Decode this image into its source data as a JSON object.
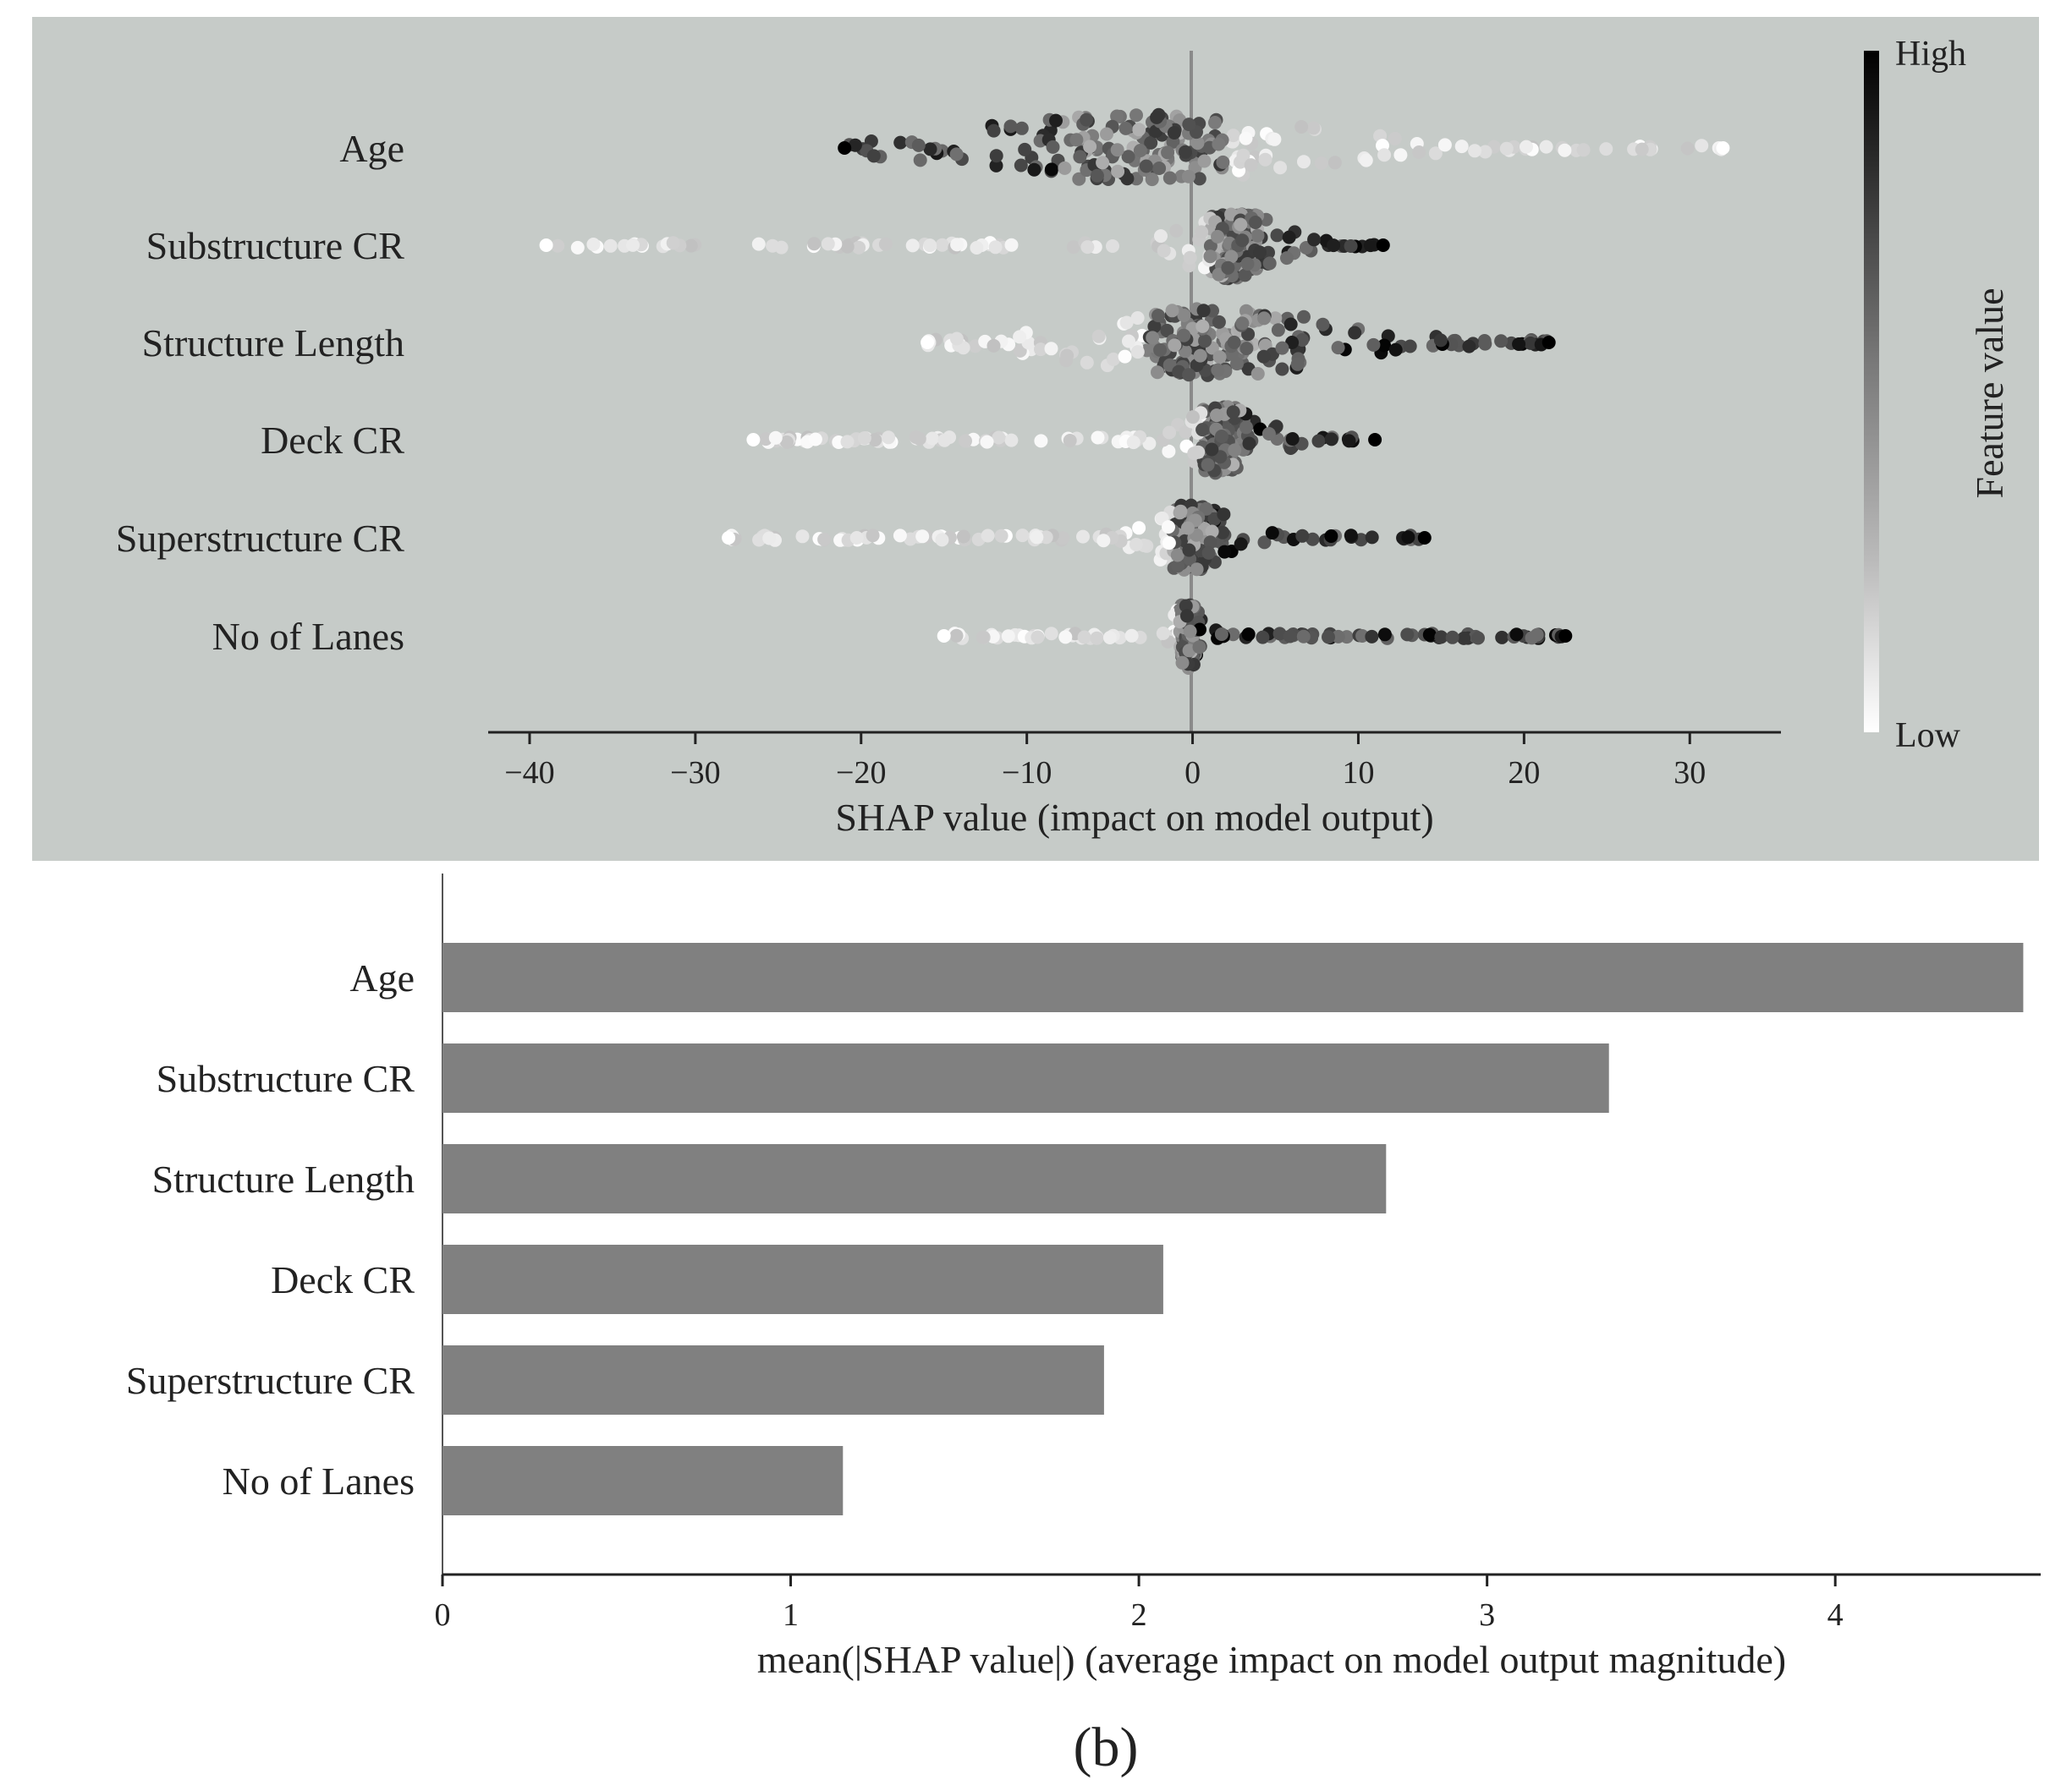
{
  "caption": "(b)",
  "chart_data": [
    {
      "type": "scatter",
      "subtype": "shap-beeswarm",
      "title": "",
      "xlabel": "SHAP value (impact on model output)",
      "xlim": [
        -42.5,
        35.5
      ],
      "xticks": [
        -40,
        -30,
        -20,
        -10,
        0,
        10,
        20,
        30
      ],
      "xtick_labels": [
        "−40",
        "−30",
        "−20",
        "−10",
        "0",
        "10",
        "20",
        "30"
      ],
      "background": "#c6cbc8",
      "colorbar": {
        "label": "Feature value",
        "high": "High",
        "low": "Low",
        "high_color": "#000000",
        "low_color": "#ffffff"
      },
      "features": [
        {
          "name": "Age",
          "min": -21,
          "max": 32,
          "core": [
            -10,
            8
          ],
          "low_side": "positive",
          "high_side": "negative",
          "peak": -3,
          "spread": 6.5
        },
        {
          "name": "Substructure CR",
          "min": -39,
          "max": 11.5,
          "core": [
            0,
            5
          ],
          "low_side": "negative",
          "high_side": "positive",
          "peak": 2.5,
          "spread": 1.8
        },
        {
          "name": "Structure Length",
          "min": -16,
          "max": 21.5,
          "core": [
            -6,
            7
          ],
          "low_side": "negative",
          "high_side": "positive",
          "peak": 1,
          "spread": 5
        },
        {
          "name": "Deck CR",
          "min": -26.5,
          "max": 11,
          "core": [
            -2,
            4
          ],
          "low_side": "negative",
          "high_side": "positive",
          "peak": 1.8,
          "spread": 1.6
        },
        {
          "name": "Superstructure CR",
          "min": -28,
          "max": 14,
          "core": [
            -1,
            5
          ],
          "low_side": "negative",
          "high_side": "positive",
          "peak": 0,
          "spread": 1.6
        },
        {
          "name": "No of Lanes",
          "min": -15,
          "max": 22.5,
          "core": [
            -1,
            1
          ],
          "low_side": "negative",
          "high_side": "positive",
          "peak": -0.3,
          "spread": 0.6
        }
      ]
    },
    {
      "type": "bar",
      "orientation": "horizontal",
      "title": "",
      "xlabel": "mean(|SHAP value|) (average impact on model output magnitude)",
      "ylabel": "",
      "categories": [
        "Age",
        "Substructure CR",
        "Structure Length",
        "Deck CR",
        "Superstructure CR",
        "No of Lanes"
      ],
      "values": [
        4.54,
        3.35,
        2.71,
        2.07,
        1.9,
        1.15
      ],
      "xlim": [
        0,
        4.59
      ],
      "xticks": [
        0,
        1,
        2,
        3,
        4
      ],
      "xtick_labels": [
        "0",
        "1",
        "2",
        "3",
        "4"
      ],
      "bar_color": "#808080"
    }
  ]
}
